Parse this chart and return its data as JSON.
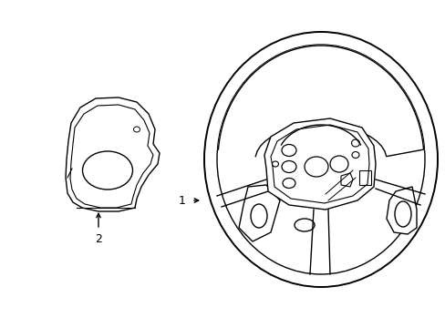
{
  "bg_color": "#ffffff",
  "line_color": "#000000",
  "line_width": 1.0,
  "fig_width": 4.89,
  "fig_height": 3.6,
  "dpi": 100,
  "label_1": "1",
  "label_2": "2"
}
